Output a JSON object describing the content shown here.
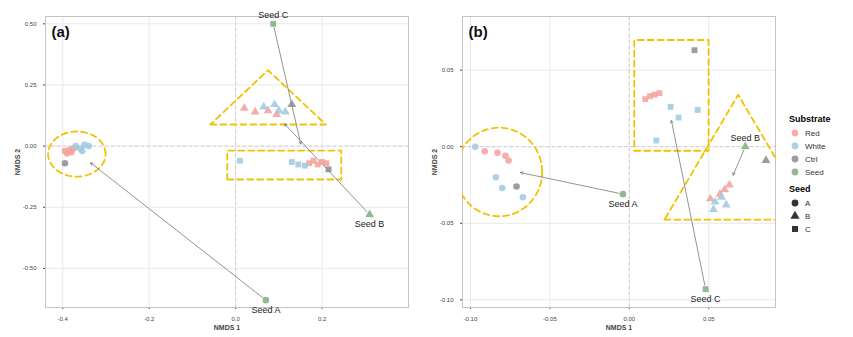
{
  "chart_data": [
    {
      "type": "scatter",
      "title": "(a)",
      "x_label": "NMDS 1",
      "y_label": "NMDS 2",
      "xlim": [
        -0.44,
        0.4
      ],
      "ylim": [
        -0.66,
        0.53
      ],
      "xticks": [
        {
          "value": -0.4,
          "label": "-0.4"
        },
        {
          "value": -0.2,
          "label": "-0.2"
        },
        {
          "value": 0,
          "label": "0.0"
        },
        {
          "value": 0.2,
          "label": "0.2"
        }
      ],
      "yticks": [
        {
          "value": -0.5,
          "label": "-0.50"
        },
        {
          "value": -0.25,
          "label": "-0.25"
        },
        {
          "value": 0,
          "label": "0.00"
        },
        {
          "value": 0.25,
          "label": "0.25"
        },
        {
          "value": 0.5,
          "label": "0.50"
        }
      ],
      "grid": true,
      "shapes": [
        {
          "name": "A",
          "marker": "circle"
        },
        {
          "name": "B",
          "marker": "triangle"
        },
        {
          "name": "C",
          "marker": "square"
        }
      ],
      "series": [
        {
          "name": "Red",
          "color": "#f4a09c",
          "points": [
            {
              "x": -0.395,
              "y": -0.02,
              "seed": "A"
            },
            {
              "x": -0.39,
              "y": -0.03,
              "seed": "A"
            },
            {
              "x": -0.385,
              "y": -0.015,
              "seed": "A"
            },
            {
              "x": -0.38,
              "y": -0.025,
              "seed": "A"
            },
            {
              "x": -0.375,
              "y": -0.01,
              "seed": "A"
            },
            {
              "x": 0.02,
              "y": 0.155,
              "seed": "B"
            },
            {
              "x": 0.045,
              "y": 0.14,
              "seed": "B"
            },
            {
              "x": 0.075,
              "y": 0.145,
              "seed": "B"
            },
            {
              "x": 0.095,
              "y": 0.13,
              "seed": "B"
            },
            {
              "x": 0.17,
              "y": -0.07,
              "seed": "C"
            },
            {
              "x": 0.18,
              "y": -0.06,
              "seed": "C"
            },
            {
              "x": 0.19,
              "y": -0.075,
              "seed": "C"
            },
            {
              "x": 0.2,
              "y": -0.065,
              "seed": "C"
            },
            {
              "x": 0.21,
              "y": -0.07,
              "seed": "C"
            }
          ]
        },
        {
          "name": "White",
          "color": "#9ec9e2",
          "points": [
            {
              "x": -0.37,
              "y": 0.0,
              "seed": "A"
            },
            {
              "x": -0.36,
              "y": -0.01,
              "seed": "A"
            },
            {
              "x": -0.35,
              "y": 0.005,
              "seed": "A"
            },
            {
              "x": -0.34,
              "y": 0.0,
              "seed": "A"
            },
            {
              "x": -0.355,
              "y": -0.02,
              "seed": "A"
            },
            {
              "x": 0.065,
              "y": 0.16,
              "seed": "B"
            },
            {
              "x": 0.09,
              "y": 0.17,
              "seed": "B"
            },
            {
              "x": 0.1,
              "y": 0.145,
              "seed": "B"
            },
            {
              "x": 0.115,
              "y": 0.14,
              "seed": "B"
            },
            {
              "x": 0.01,
              "y": -0.06,
              "seed": "C"
            },
            {
              "x": 0.13,
              "y": -0.065,
              "seed": "C"
            },
            {
              "x": 0.145,
              "y": -0.075,
              "seed": "C"
            },
            {
              "x": 0.16,
              "y": -0.08,
              "seed": "C"
            }
          ]
        },
        {
          "name": "Ctrl",
          "color": "#8c8c8c",
          "points": [
            {
              "x": -0.395,
              "y": -0.07,
              "seed": "A"
            },
            {
              "x": 0.13,
              "y": 0.17,
              "seed": "B"
            },
            {
              "x": 0.215,
              "y": -0.095,
              "seed": "C"
            }
          ]
        },
        {
          "name": "Seed",
          "color": "#7fae7f",
          "points": [
            {
              "x": 0.07,
              "y": -0.63,
              "seed": "A",
              "label": "Seed A"
            },
            {
              "x": 0.31,
              "y": -0.28,
              "seed": "B",
              "label": "Seed B"
            },
            {
              "x": 0.087,
              "y": 0.5,
              "seed": "C",
              "label": "Seed C"
            }
          ]
        }
      ]
    },
    {
      "type": "scatter",
      "title": "(b)",
      "x_label": "NMDS 1",
      "y_label": "NMDS 2",
      "xlim": [
        -0.105,
        0.092
      ],
      "ylim": [
        -0.105,
        0.085
      ],
      "xticks": [
        {
          "value": -0.1,
          "label": "-0.10"
        },
        {
          "value": -0.05,
          "label": "-0.05"
        },
        {
          "value": 0,
          "label": "0.00"
        },
        {
          "value": 0.05,
          "label": "0.05"
        }
      ],
      "yticks": [
        {
          "value": -0.1,
          "label": "-0.10"
        },
        {
          "value": -0.05,
          "label": "-0.05"
        },
        {
          "value": 0,
          "label": "0.00"
        },
        {
          "value": 0.05,
          "label": "0.05"
        }
      ],
      "grid": true,
      "legend": "right",
      "color_title": "Substrate",
      "shape_title": "Seed",
      "shapes": [
        {
          "name": "A",
          "marker": "circle"
        },
        {
          "name": "B",
          "marker": "triangle"
        },
        {
          "name": "C",
          "marker": "square"
        }
      ],
      "series": [
        {
          "name": "Red",
          "color": "#f4a09c",
          "points": [
            {
              "x": -0.091,
              "y": -0.003,
              "seed": "A"
            },
            {
              "x": -0.083,
              "y": -0.004,
              "seed": "A"
            },
            {
              "x": -0.078,
              "y": -0.006,
              "seed": "A"
            },
            {
              "x": -0.076,
              "y": -0.009,
              "seed": "A"
            },
            {
              "x": 0.057,
              "y": -0.031,
              "seed": "B"
            },
            {
              "x": 0.06,
              "y": -0.028,
              "seed": "B"
            },
            {
              "x": 0.063,
              "y": -0.025,
              "seed": "B"
            },
            {
              "x": 0.051,
              "y": -0.034,
              "seed": "B"
            },
            {
              "x": 0.01,
              "y": 0.031,
              "seed": "C"
            },
            {
              "x": 0.013,
              "y": 0.033,
              "seed": "C"
            },
            {
              "x": 0.016,
              "y": 0.034,
              "seed": "C"
            },
            {
              "x": 0.019,
              "y": 0.035,
              "seed": "C"
            }
          ]
        },
        {
          "name": "White",
          "color": "#9ec9e2",
          "points": [
            {
              "x": -0.097,
              "y": 0.0,
              "seed": "A"
            },
            {
              "x": -0.084,
              "y": -0.02,
              "seed": "A"
            },
            {
              "x": -0.08,
              "y": -0.027,
              "seed": "A"
            },
            {
              "x": -0.067,
              "y": -0.033,
              "seed": "A"
            },
            {
              "x": 0.054,
              "y": -0.036,
              "seed": "B"
            },
            {
              "x": 0.061,
              "y": -0.038,
              "seed": "B"
            },
            {
              "x": 0.053,
              "y": -0.041,
              "seed": "B"
            },
            {
              "x": 0.058,
              "y": -0.033,
              "seed": "B"
            },
            {
              "x": 0.026,
              "y": 0.026,
              "seed": "C"
            },
            {
              "x": 0.031,
              "y": 0.019,
              "seed": "C"
            },
            {
              "x": 0.043,
              "y": 0.024,
              "seed": "C"
            },
            {
              "x": 0.017,
              "y": 0.004,
              "seed": "C"
            }
          ]
        },
        {
          "name": "Ctrl",
          "color": "#8c8c8c",
          "points": [
            {
              "x": -0.071,
              "y": -0.026,
              "seed": "A"
            },
            {
              "x": 0.086,
              "y": -0.009,
              "seed": "B"
            },
            {
              "x": 0.041,
              "y": 0.063,
              "seed": "C"
            }
          ]
        },
        {
          "name": "Seed",
          "color": "#7fae7f",
          "points": [
            {
              "x": -0.004,
              "y": -0.031,
              "seed": "A",
              "label": "Seed A"
            },
            {
              "x": 0.073,
              "y": 0.0,
              "seed": "B",
              "label": "Seed B"
            },
            {
              "x": 0.048,
              "y": -0.093,
              "seed": "C",
              "label": "Seed C"
            }
          ]
        }
      ]
    }
  ]
}
